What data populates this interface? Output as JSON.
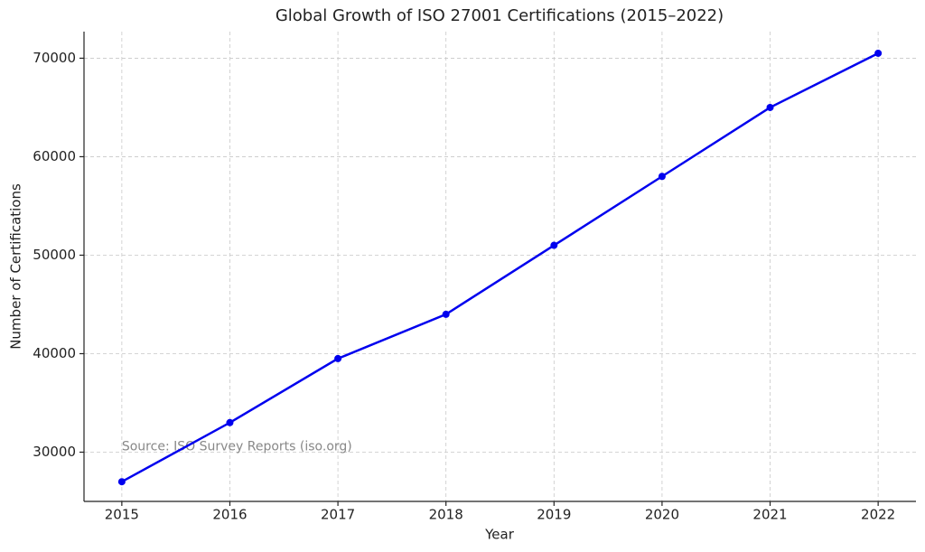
{
  "chart_data": {
    "type": "line",
    "title": "Global Growth of ISO 27001 Certifications (2015–2022)",
    "x_label": "Year",
    "y_label": "Number of Certifications",
    "annotation": "Source: ISO Survey Reports (iso.org)",
    "x": [
      2015,
      2016,
      2017,
      2018,
      2019,
      2020,
      2021,
      2022
    ],
    "values": [
      27000,
      33000,
      39500,
      44000,
      51000,
      58000,
      65000,
      70500
    ],
    "color": "#0000ee",
    "xlim": [
      2014.65,
      2022.35
    ],
    "xticks": [
      2015,
      2016,
      2017,
      2018,
      2019,
      2020,
      2021,
      2022
    ],
    "ylim": [
      25000,
      72700
    ],
    "yticks": [
      30000,
      40000,
      50000,
      60000,
      70000
    ],
    "grid": true
  }
}
